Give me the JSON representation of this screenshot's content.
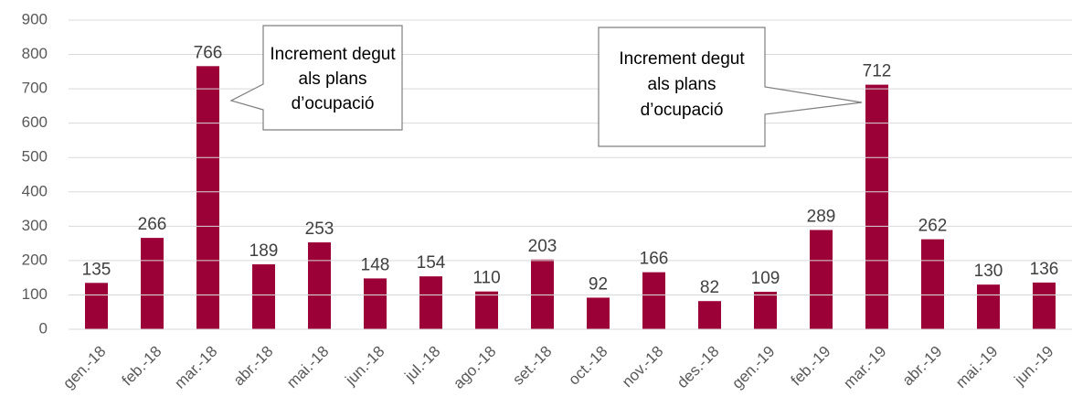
{
  "chart_data": {
    "type": "bar",
    "categories": [
      "gen.-18",
      "feb.-18",
      "mar.-18",
      "abr.-18",
      "mai.-18",
      "jun.-18",
      "jul.-18",
      "ago.-18",
      "set.-18",
      "oct.-18",
      "nov.-18",
      "des.-18",
      "gen.-19",
      "feb.-19",
      "mar.-19",
      "abr.-19",
      "mai.-19",
      "jun.-19"
    ],
    "values": [
      135,
      266,
      766,
      189,
      253,
      148,
      154,
      110,
      203,
      92,
      166,
      82,
      109,
      289,
      712,
      262,
      130,
      136
    ],
    "color": "#9b0036",
    "ylim": [
      0,
      900
    ],
    "yticks": [
      0,
      100,
      200,
      300,
      400,
      500,
      600,
      700,
      800,
      900
    ],
    "grid": true,
    "annotations": [
      {
        "lines": [
          "Increment degut",
          "als plans",
          "d’ocupació"
        ]
      },
      {
        "lines": [
          "Increment degut",
          "als plans",
          "d’ocupació"
        ]
      }
    ]
  }
}
